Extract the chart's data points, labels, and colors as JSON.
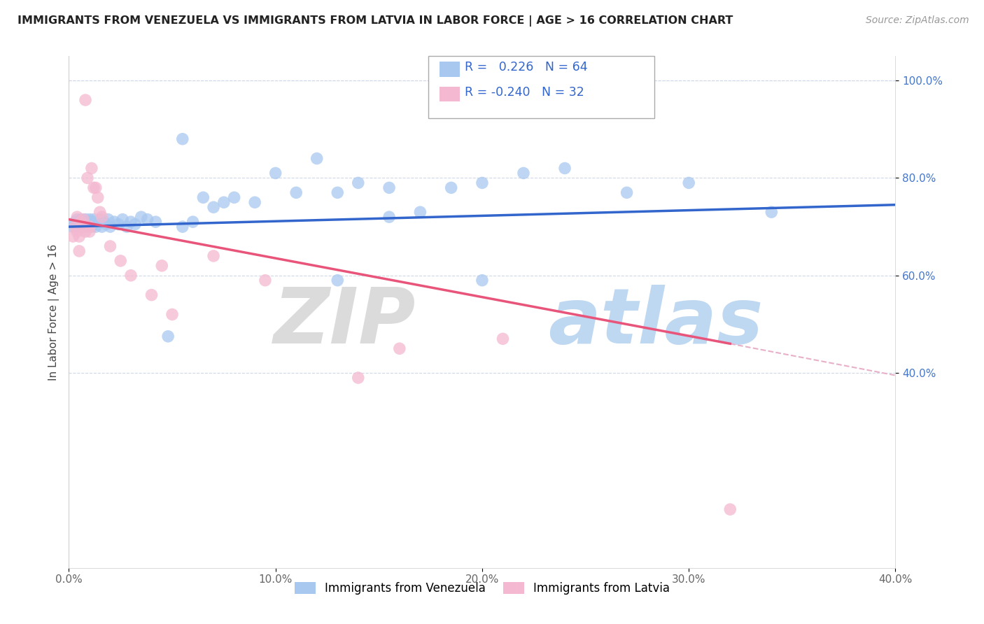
{
  "title": "IMMIGRANTS FROM VENEZUELA VS IMMIGRANTS FROM LATVIA IN LABOR FORCE | AGE > 16 CORRELATION CHART",
  "source": "Source: ZipAtlas.com",
  "ylabel": "In Labor Force | Age > 16",
  "legend_bottom": [
    "Immigrants from Venezuela",
    "Immigrants from Latvia"
  ],
  "r_venezuela": 0.226,
  "n_venezuela": 64,
  "r_latvia": -0.24,
  "n_latvia": 32,
  "xlim": [
    0.0,
    0.4
  ],
  "ylim": [
    0.0,
    1.05
  ],
  "xticks": [
    0.0,
    0.1,
    0.2,
    0.3,
    0.4
  ],
  "yticks": [
    0.4,
    0.6,
    0.8,
    1.0
  ],
  "xtick_labels": [
    "0.0%",
    "10.0%",
    "20.0%",
    "30.0%",
    "40.0%"
  ],
  "ytick_labels": [
    "40.0%",
    "60.0%",
    "80.0%",
    "100.0%"
  ],
  "color_venezuela": "#a8c8f0",
  "color_latvia": "#f4b8d0",
  "line_color_venezuela": "#3366cc",
  "line_color_latvia": "#e8547a",
  "line_color_dashed": "#e8b0c8",
  "background_color": "#ffffff",
  "venezuela_x": [
    0.002,
    0.003,
    0.004,
    0.004,
    0.005,
    0.005,
    0.006,
    0.006,
    0.007,
    0.007,
    0.008,
    0.008,
    0.009,
    0.009,
    0.01,
    0.01,
    0.011,
    0.011,
    0.012,
    0.012,
    0.013,
    0.014,
    0.015,
    0.015,
    0.016,
    0.017,
    0.018,
    0.019,
    0.02,
    0.022,
    0.024,
    0.026,
    0.028,
    0.03,
    0.032,
    0.035,
    0.038,
    0.042,
    0.048,
    0.055,
    0.06,
    0.065,
    0.07,
    0.075,
    0.08,
    0.09,
    0.1,
    0.11,
    0.12,
    0.13,
    0.14,
    0.155,
    0.17,
    0.185,
    0.2,
    0.22,
    0.24,
    0.27,
    0.3,
    0.34,
    0.055,
    0.13,
    0.2,
    0.155
  ],
  "venezuela_y": [
    0.7,
    0.71,
    0.715,
    0.705,
    0.7,
    0.71,
    0.705,
    0.715,
    0.7,
    0.71,
    0.705,
    0.715,
    0.7,
    0.71,
    0.705,
    0.715,
    0.7,
    0.71,
    0.705,
    0.715,
    0.7,
    0.705,
    0.71,
    0.715,
    0.7,
    0.71,
    0.705,
    0.715,
    0.7,
    0.71,
    0.705,
    0.715,
    0.7,
    0.71,
    0.705,
    0.72,
    0.715,
    0.71,
    0.475,
    0.7,
    0.71,
    0.76,
    0.74,
    0.75,
    0.76,
    0.75,
    0.81,
    0.77,
    0.84,
    0.77,
    0.79,
    0.78,
    0.73,
    0.78,
    0.79,
    0.81,
    0.82,
    0.77,
    0.79,
    0.73,
    0.88,
    0.59,
    0.59,
    0.72
  ],
  "latvia_x": [
    0.002,
    0.003,
    0.004,
    0.004,
    0.005,
    0.005,
    0.006,
    0.007,
    0.007,
    0.008,
    0.008,
    0.009,
    0.01,
    0.01,
    0.011,
    0.012,
    0.013,
    0.014,
    0.015,
    0.016,
    0.02,
    0.025,
    0.03,
    0.045,
    0.07,
    0.16,
    0.21,
    0.04,
    0.05,
    0.095,
    0.14,
    0.32
  ],
  "latvia_y": [
    0.68,
    0.7,
    0.69,
    0.72,
    0.65,
    0.68,
    0.71,
    0.7,
    0.715,
    0.69,
    0.96,
    0.8,
    0.69,
    0.7,
    0.82,
    0.78,
    0.78,
    0.76,
    0.73,
    0.72,
    0.66,
    0.63,
    0.6,
    0.62,
    0.64,
    0.45,
    0.47,
    0.56,
    0.52,
    0.59,
    0.39,
    0.12
  ],
  "line_venezuela_x0": 0.0,
  "line_venezuela_y0": 0.7,
  "line_venezuela_x1": 0.4,
  "line_venezuela_y1": 0.745,
  "line_latvia_x0": 0.0,
  "line_latvia_y0": 0.715,
  "line_latvia_x1": 0.32,
  "line_latvia_y1": 0.46,
  "line_dashed_x0": 0.32,
  "line_dashed_y0": 0.46,
  "line_dashed_x1": 0.4,
  "line_dashed_y1": 0.395
}
